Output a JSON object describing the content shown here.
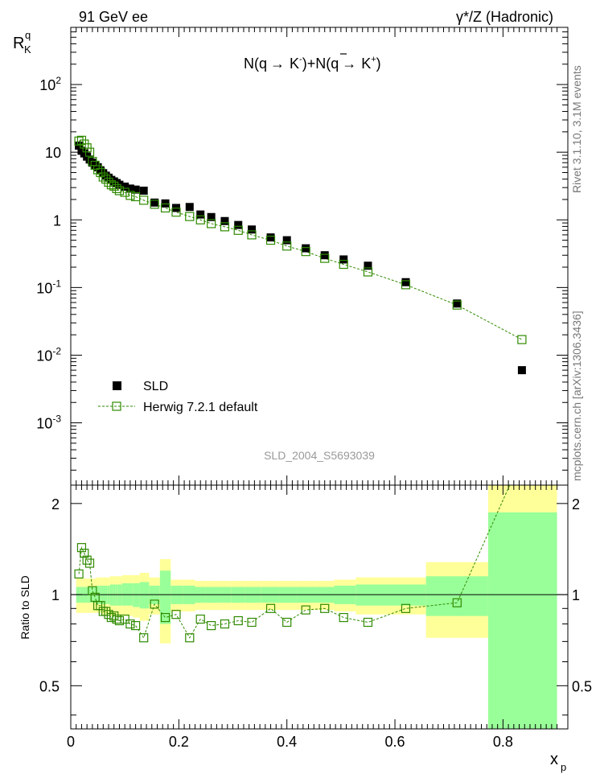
{
  "header": {
    "energy_label": "91 GeV ee",
    "process_label": "γ*/Z (Hadronic)",
    "y_label_main": "R",
    "y_label_sup": "q",
    "y_label_sub": "K"
  },
  "side_labels": {
    "rivet": "Rivet 3.1.10,  3.1M events",
    "mcplots": "mcplots.cern.ch [arXiv:1306.3436]"
  },
  "plot_title": {
    "N1": "N(q",
    "K1": "K",
    "K1sup": "-",
    "plus": ")+N(",
    "qbar": "q",
    "K2": "K",
    "K2sup": "+",
    "close": ")"
  },
  "analysis_id": "SLD_2004_S5693039",
  "legend": {
    "data_label": "SLD",
    "mc_label": "Herwig 7.2.1 default"
  },
  "main_axis_labels": {
    "y_ticks": [
      {
        "v": 0.001,
        "b": "10",
        "e": "-3"
      },
      {
        "v": 0.01,
        "b": "10",
        "e": "-2"
      },
      {
        "v": 0.1,
        "b": "10",
        "e": "-1"
      },
      {
        "v": 1,
        "t": "1"
      },
      {
        "v": 10,
        "t": "10"
      },
      {
        "v": 100,
        "b": "10",
        "e": "2"
      }
    ]
  },
  "ratio_axis": {
    "ylabel": "Ratio to SLD",
    "ticks": [
      {
        "v": 0.5,
        "t": "0.5"
      },
      {
        "v": 1,
        "t": "1"
      },
      {
        "v": 2,
        "t": "2"
      }
    ]
  },
  "x_axis": {
    "label": "x",
    "label_sub": "p",
    "ticks": [
      {
        "v": 0,
        "t": "0"
      },
      {
        "v": 0.2,
        "t": "0.2"
      },
      {
        "v": 0.4,
        "t": "0.4"
      },
      {
        "v": 0.6,
        "t": "0.6"
      },
      {
        "v": 0.8,
        "t": "0.8"
      }
    ]
  },
  "colors": {
    "data": "#000000",
    "mc": "#2f8a00",
    "band_inner": "#99ff99",
    "band_outer": "#ffff99"
  },
  "chart_data": {
    "type": "scatter",
    "xlim": [
      0,
      0.92
    ],
    "ylim_main": [
      0.00012,
      700
    ],
    "ylim_ratio": [
      0.36,
      2.3
    ],
    "yscale": "log",
    "x": [
      0.015,
      0.02,
      0.025,
      0.03,
      0.035,
      0.04,
      0.045,
      0.05,
      0.055,
      0.06,
      0.065,
      0.07,
      0.075,
      0.08,
      0.085,
      0.09,
      0.1,
      0.11,
      0.12,
      0.135,
      0.155,
      0.175,
      0.195,
      0.22,
      0.24,
      0.26,
      0.285,
      0.31,
      0.335,
      0.37,
      0.4,
      0.435,
      0.47,
      0.505,
      0.55,
      0.62,
      0.715,
      0.835
    ],
    "x_bins": [
      [
        0.01,
        0.0175
      ],
      [
        0.0175,
        0.0225
      ],
      [
        0.0225,
        0.0275
      ],
      [
        0.0275,
        0.0325
      ],
      [
        0.0325,
        0.0375
      ],
      [
        0.0375,
        0.0425
      ],
      [
        0.0425,
        0.0475
      ],
      [
        0.0475,
        0.0525
      ],
      [
        0.0525,
        0.0575
      ],
      [
        0.0575,
        0.0625
      ],
      [
        0.0625,
        0.0675
      ],
      [
        0.0675,
        0.0725
      ],
      [
        0.0725,
        0.0775
      ],
      [
        0.0775,
        0.0825
      ],
      [
        0.0825,
        0.0875
      ],
      [
        0.0875,
        0.095
      ],
      [
        0.095,
        0.105
      ],
      [
        0.105,
        0.115
      ],
      [
        0.115,
        0.1275
      ],
      [
        0.1275,
        0.145
      ],
      [
        0.145,
        0.165
      ],
      [
        0.165,
        0.185
      ],
      [
        0.185,
        0.2075
      ],
      [
        0.2075,
        0.23
      ],
      [
        0.23,
        0.25
      ],
      [
        0.25,
        0.2725
      ],
      [
        0.2725,
        0.2975
      ],
      [
        0.2975,
        0.3225
      ],
      [
        0.3225,
        0.3525
      ],
      [
        0.3525,
        0.385
      ],
      [
        0.385,
        0.4175
      ],
      [
        0.4175,
        0.4525
      ],
      [
        0.4525,
        0.4875
      ],
      [
        0.4875,
        0.5275
      ],
      [
        0.5275,
        0.585
      ],
      [
        0.585,
        0.6575
      ],
      [
        0.6575,
        0.7725
      ],
      [
        0.7725,
        0.9
      ]
    ],
    "series": [
      {
        "name": "SLD",
        "values": [
          12.5,
          10.5,
          9.6,
          8.6,
          7.8,
          7.0,
          6.5,
          6.0,
          5.4,
          4.9,
          4.5,
          4.2,
          3.9,
          3.7,
          3.5,
          3.3,
          3.1,
          2.9,
          2.8,
          2.7,
          1.8,
          1.75,
          1.5,
          1.55,
          1.2,
          1.1,
          0.96,
          0.84,
          0.72,
          0.55,
          0.5,
          0.38,
          0.3,
          0.26,
          0.21,
          0.12,
          0.058,
          0.006
        ]
      },
      {
        "name": "Herwig 7.2.1 default",
        "values": [
          14.6,
          15.0,
          13.2,
          11.6,
          10.0,
          7.3,
          6.4,
          5.5,
          5.0,
          4.3,
          4.0,
          3.6,
          3.3,
          3.15,
          2.9,
          2.7,
          2.55,
          2.3,
          2.2,
          1.95,
          1.7,
          1.5,
          1.3,
          1.12,
          1.0,
          0.88,
          0.79,
          0.7,
          0.6,
          0.5,
          0.41,
          0.34,
          0.27,
          0.22,
          0.17,
          0.11,
          0.055,
          0.017
        ]
      }
    ],
    "ratio": [
      1.17,
      1.43,
      1.37,
      1.3,
      1.27,
      1.03,
      0.98,
      0.92,
      0.92,
      0.88,
      0.88,
      0.86,
      0.84,
      0.85,
      0.83,
      0.82,
      0.83,
      0.8,
      0.79,
      0.72,
      0.93,
      0.84,
      0.86,
      0.72,
      0.83,
      0.79,
      0.8,
      0.82,
      0.81,
      0.9,
      0.81,
      0.89,
      0.9,
      0.84,
      0.81,
      0.9,
      0.94,
      2.83
    ],
    "ratio_band_inner": [
      [
        0.94,
        1.06
      ],
      [
        0.94,
        1.06
      ],
      [
        0.94,
        1.06
      ],
      [
        0.94,
        1.06
      ],
      [
        0.94,
        1.06
      ],
      [
        0.94,
        1.06
      ],
      [
        0.94,
        1.06
      ],
      [
        0.93,
        1.07
      ],
      [
        0.93,
        1.07
      ],
      [
        0.93,
        1.07
      ],
      [
        0.93,
        1.07
      ],
      [
        0.93,
        1.07
      ],
      [
        0.92,
        1.08
      ],
      [
        0.92,
        1.08
      ],
      [
        0.92,
        1.08
      ],
      [
        0.92,
        1.08
      ],
      [
        0.92,
        1.09
      ],
      [
        0.92,
        1.09
      ],
      [
        0.91,
        1.09
      ],
      [
        0.9,
        1.1
      ],
      [
        0.93,
        1.07
      ],
      [
        0.8,
        1.2
      ],
      [
        0.93,
        1.07
      ],
      [
        0.93,
        1.07
      ],
      [
        0.94,
        1.06
      ],
      [
        0.94,
        1.06
      ],
      [
        0.94,
        1.06
      ],
      [
        0.94,
        1.06
      ],
      [
        0.94,
        1.06
      ],
      [
        0.94,
        1.06
      ],
      [
        0.94,
        1.06
      ],
      [
        0.94,
        1.06
      ],
      [
        0.94,
        1.06
      ],
      [
        0.93,
        1.07
      ],
      [
        0.92,
        1.08
      ],
      [
        0.92,
        1.08
      ],
      [
        0.85,
        1.15
      ],
      [
        0.36,
        1.87
      ]
    ],
    "ratio_band_outer": [
      [
        0.87,
        1.13
      ],
      [
        0.87,
        1.13
      ],
      [
        0.87,
        1.13
      ],
      [
        0.87,
        1.13
      ],
      [
        0.87,
        1.13
      ],
      [
        0.87,
        1.13
      ],
      [
        0.87,
        1.13
      ],
      [
        0.87,
        1.14
      ],
      [
        0.87,
        1.14
      ],
      [
        0.86,
        1.14
      ],
      [
        0.86,
        1.14
      ],
      [
        0.86,
        1.14
      ],
      [
        0.85,
        1.15
      ],
      [
        0.85,
        1.15
      ],
      [
        0.85,
        1.15
      ],
      [
        0.85,
        1.15
      ],
      [
        0.85,
        1.16
      ],
      [
        0.85,
        1.16
      ],
      [
        0.84,
        1.16
      ],
      [
        0.82,
        1.18
      ],
      [
        0.86,
        1.14
      ],
      [
        0.69,
        1.31
      ],
      [
        0.88,
        1.12
      ],
      [
        0.88,
        1.12
      ],
      [
        0.89,
        1.11
      ],
      [
        0.89,
        1.11
      ],
      [
        0.89,
        1.11
      ],
      [
        0.89,
        1.11
      ],
      [
        0.89,
        1.11
      ],
      [
        0.89,
        1.11
      ],
      [
        0.89,
        1.11
      ],
      [
        0.89,
        1.11
      ],
      [
        0.89,
        1.11
      ],
      [
        0.88,
        1.12
      ],
      [
        0.86,
        1.14
      ],
      [
        0.86,
        1.14
      ],
      [
        0.72,
        1.28
      ],
      [
        0.36,
        2.3
      ]
    ]
  }
}
